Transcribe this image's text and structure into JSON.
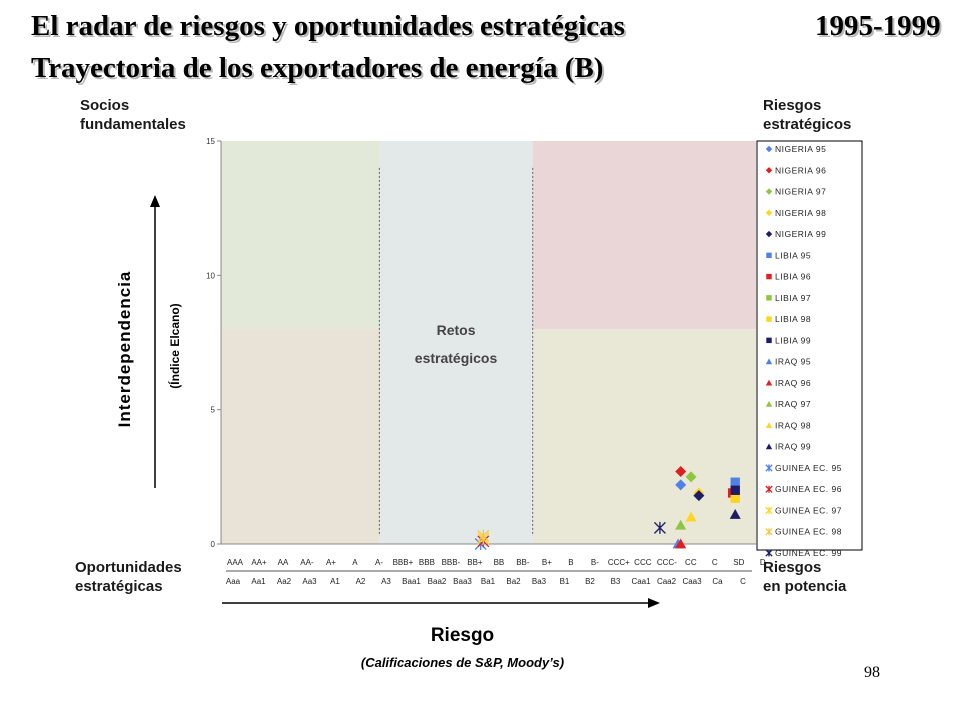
{
  "header": {
    "title_line1": "El radar de riesgos y oportunidades estratégicas",
    "years": "1995-1999",
    "title_line2": "Trayectoria de los exportadores de energía (B)"
  },
  "corners": {
    "top_left": [
      "Socios",
      "fundamentales"
    ],
    "top_right": [
      "Riesgos",
      "estratégicos"
    ],
    "bottom_left": [
      "Oportunidades",
      "estratégicas"
    ],
    "bottom_right": [
      "Riesgos",
      "en potencia"
    ]
  },
  "slide_number": "98",
  "chart_data": {
    "type": "scatter",
    "ylabel": "Interdependencia",
    "ylabel_sub": "(Índice Elcano)",
    "xlabel": "Riesgo",
    "xlabel_sub": "(Calificaciones de S&P, Moody’s)",
    "center_label": [
      "Retos",
      "estratégicos"
    ],
    "ylim": [
      0,
      15
    ],
    "y_ticks": [
      "0",
      "5",
      "10",
      "15"
    ],
    "x_ticks_sp": [
      "AAA",
      "AA+",
      "AA",
      "AA-",
      "A+",
      "A",
      "A-",
      "BBB+",
      "BBB",
      "BBB-",
      "BB+",
      "BB",
      "BB-",
      "B+",
      "B",
      "B-",
      "CCC+",
      "CCC",
      "CCC-",
      "CC",
      "C",
      "SD",
      "D"
    ],
    "x_ticks_moodys": [
      "Aaa",
      "Aa1",
      "Aa2",
      "Aa3",
      "A1",
      "A2",
      "A3",
      "Baa1",
      "Baa2",
      "Baa3",
      "Ba1",
      "Ba2",
      "Ba3",
      "B1",
      "B2",
      "B3",
      "Caa1",
      "Caa2",
      "Caa3",
      "Ca",
      "C"
    ],
    "region_colors": {
      "socios": "#e3e9d9",
      "oportunidades": "#e9e3d7",
      "retos": "#e3e8e8",
      "riesgos_estrategicos": "#ead6d6",
      "riesgos_potencia": "#e9e8d7"
    },
    "series": [
      {
        "name": "NIGERIA 95",
        "marker": "diamond",
        "color": "#4f81e8",
        "x": 17.7,
        "y": 2.2
      },
      {
        "name": "NIGERIA 96",
        "marker": "diamond",
        "color": "#e02020",
        "x": 17.7,
        "y": 2.7
      },
      {
        "name": "NIGERIA 97",
        "marker": "diamond",
        "color": "#8dc63f",
        "x": 18.1,
        "y": 2.5
      },
      {
        "name": "NIGERIA 98",
        "marker": "diamond",
        "color": "#ffd51f",
        "x": 18.4,
        "y": 1.9
      },
      {
        "name": "NIGERIA 99",
        "marker": "diamond",
        "color": "#1c1c6b",
        "x": 18.4,
        "y": 1.8
      },
      {
        "name": "LIBIA 95",
        "marker": "square",
        "color": "#4f81e8",
        "x": 19.8,
        "y": 2.3
      },
      {
        "name": "LIBIA 96",
        "marker": "square",
        "color": "#e02020",
        "x": 19.7,
        "y": 1.9
      },
      {
        "name": "LIBIA 97",
        "marker": "square",
        "color": "#8dc63f",
        "x": 19.8,
        "y": 1.9
      },
      {
        "name": "LIBIA 98",
        "marker": "square",
        "color": "#ffd51f",
        "x": 19.8,
        "y": 1.7
      },
      {
        "name": "LIBIA 99",
        "marker": "square",
        "color": "#1c1c6b",
        "x": 19.8,
        "y": 2.0
      },
      {
        "name": "IRAQ 95",
        "marker": "triangle",
        "color": "#4f81e8",
        "x": 17.6,
        "y": 0.0
      },
      {
        "name": "IRAQ 96",
        "marker": "triangle",
        "color": "#e02020",
        "x": 17.7,
        "y": 0.0
      },
      {
        "name": "IRAQ 97",
        "marker": "triangle",
        "color": "#8dc63f",
        "x": 17.7,
        "y": 0.7
      },
      {
        "name": "IRAQ 98",
        "marker": "triangle",
        "color": "#ffd51f",
        "x": 18.1,
        "y": 1.0
      },
      {
        "name": "IRAQ 99",
        "marker": "triangle",
        "color": "#1c1c6b",
        "x": 19.8,
        "y": 1.1
      },
      {
        "name": "GUINEA EC. 95",
        "marker": "asterisk",
        "color": "#4f81e8",
        "x": 10.0,
        "y": 0.0
      },
      {
        "name": "GUINEA EC. 96",
        "marker": "asterisk",
        "color": "#e02020",
        "x": 10.1,
        "y": 0.1
      },
      {
        "name": "GUINEA EC. 97",
        "marker": "asterisk",
        "color": "#ffd51f",
        "x": 10.1,
        "y": 0.2
      },
      {
        "name": "GUINEA EC. 98",
        "marker": "asterisk",
        "color": "#f5c842",
        "x": 10.1,
        "y": 0.3
      },
      {
        "name": "GUINEA EC. 99",
        "marker": "asterisk",
        "color": "#1c1c6b",
        "x": 16.9,
        "y": 0.6
      }
    ]
  }
}
